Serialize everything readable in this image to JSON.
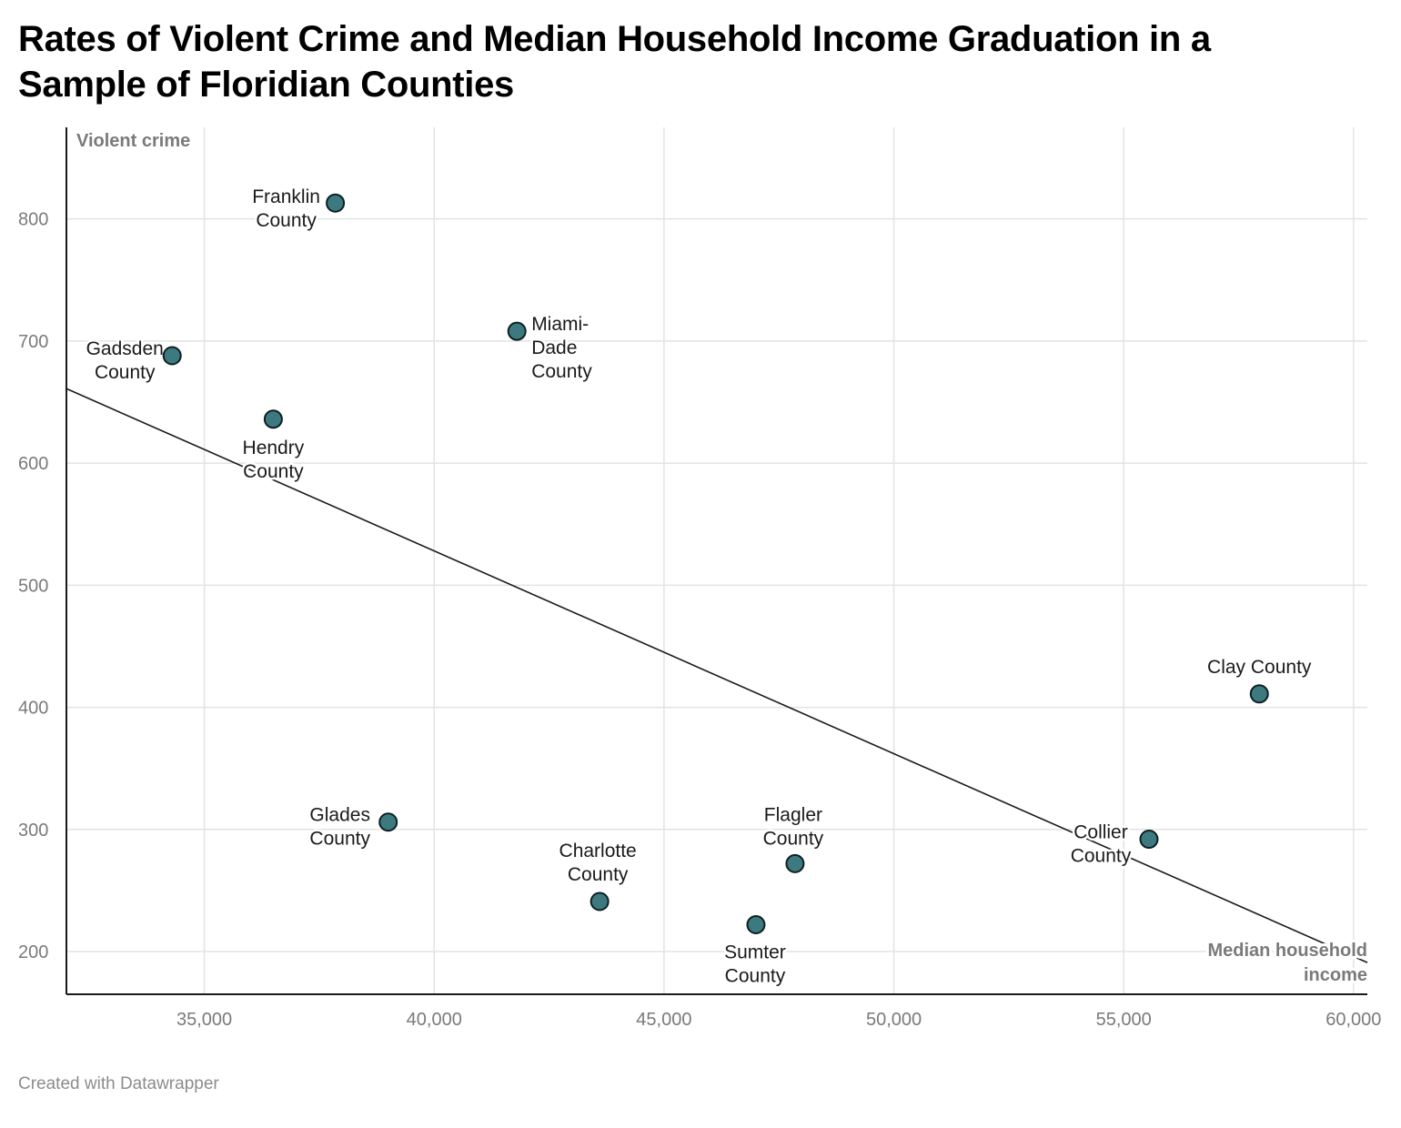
{
  "title": "Rates of Violent Crime and Median Household Income Graduation in a Sample of Floridian Counties",
  "footer": "Created with Datawrapper",
  "colors": {
    "point_fill": "#3d7a80",
    "point_stroke": "#0d1f22",
    "gridline": "#e3e3e3",
    "axis_line": "#1a1a1a",
    "trend_line": "#1a1a1a"
  },
  "chart_data": {
    "type": "scatter",
    "title": "Rates of Violent Crime and Median Household Income Graduation in a Sample of Floridian Counties",
    "xlabel": "Median household income",
    "ylabel": "Violent crime",
    "xlim": [
      32000,
      60300
    ],
    "ylim": [
      165,
      875
    ],
    "x_ticks": [
      35000,
      40000,
      45000,
      50000,
      55000,
      60000
    ],
    "x_tick_labels": [
      "35,000",
      "40,000",
      "45,000",
      "50,000",
      "55,000",
      "60,000"
    ],
    "y_ticks": [
      200,
      300,
      400,
      500,
      600,
      700,
      800
    ],
    "y_tick_labels": [
      "200",
      "300",
      "400",
      "500",
      "600",
      "700",
      "800"
    ],
    "grid": true,
    "points": [
      {
        "label": "Franklin County",
        "x": 37850,
        "y": 813
      },
      {
        "label": "Miami-Dade County",
        "x": 41800,
        "y": 708
      },
      {
        "label": "Gadsden County",
        "x": 34300,
        "y": 688
      },
      {
        "label": "Hendry County",
        "x": 36500,
        "y": 636
      },
      {
        "label": "Clay County",
        "x": 57950,
        "y": 411
      },
      {
        "label": "Glades County",
        "x": 39000,
        "y": 306
      },
      {
        "label": "Collier County",
        "x": 55550,
        "y": 292
      },
      {
        "label": "Flagler County",
        "x": 47850,
        "y": 272
      },
      {
        "label": "Charlotte County",
        "x": 43600,
        "y": 241
      },
      {
        "label": "Sumter County",
        "x": 47000,
        "y": 222
      }
    ],
    "trend_line": {
      "x": [
        32000,
        60300
      ],
      "y": [
        661,
        191
      ]
    }
  }
}
